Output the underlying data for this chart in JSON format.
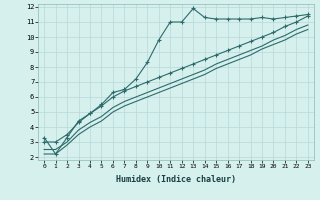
{
  "title": "",
  "xlabel": "Humidex (Indice chaleur)",
  "ylabel": "",
  "bg_color": "#d6f0ee",
  "plot_bg_color": "#d6f0ee",
  "line_color": "#2d6b6b",
  "grid_color": "#b8d8d8",
  "xlim": [
    -0.5,
    23.5
  ],
  "ylim": [
    1.8,
    12.2
  ],
  "xticks": [
    0,
    1,
    2,
    3,
    4,
    5,
    6,
    7,
    8,
    9,
    10,
    11,
    12,
    13,
    14,
    15,
    16,
    17,
    18,
    19,
    20,
    21,
    22,
    23
  ],
  "yticks": [
    2,
    3,
    4,
    5,
    6,
    7,
    8,
    9,
    10,
    11,
    12
  ],
  "series1_x": [
    0,
    1,
    2,
    3,
    4,
    5,
    6,
    7,
    8,
    9,
    10,
    11,
    12,
    13,
    14,
    15,
    16,
    17,
    18,
    19,
    20,
    21,
    22,
    23
  ],
  "series1_y": [
    3.3,
    2.2,
    3.3,
    4.4,
    4.9,
    5.5,
    6.3,
    6.5,
    7.2,
    8.3,
    9.8,
    11.0,
    11.0,
    11.9,
    11.3,
    11.2,
    11.2,
    11.2,
    11.2,
    11.3,
    11.2,
    11.3,
    11.4,
    11.5
  ],
  "series2_x": [
    0,
    1,
    2,
    3,
    4,
    5,
    6,
    7,
    8,
    9,
    10,
    11,
    12,
    13,
    14,
    15,
    16,
    17,
    18,
    19,
    20,
    21,
    22,
    23
  ],
  "series2_y": [
    3.0,
    3.0,
    3.5,
    4.3,
    4.9,
    5.4,
    6.0,
    6.4,
    6.7,
    7.0,
    7.3,
    7.6,
    7.9,
    8.2,
    8.5,
    8.8,
    9.1,
    9.4,
    9.7,
    10.0,
    10.3,
    10.7,
    11.0,
    11.4
  ],
  "series3_x": [
    0,
    1,
    2,
    3,
    4,
    5,
    6,
    7,
    8,
    9,
    10,
    11,
    12,
    13,
    14,
    15,
    16,
    17,
    18,
    19,
    20,
    21,
    22,
    23
  ],
  "series3_y": [
    2.5,
    2.5,
    3.0,
    3.8,
    4.3,
    4.7,
    5.3,
    5.7,
    6.0,
    6.3,
    6.6,
    6.9,
    7.2,
    7.5,
    7.8,
    8.2,
    8.5,
    8.8,
    9.1,
    9.4,
    9.8,
    10.1,
    10.5,
    10.8
  ],
  "series4_x": [
    0,
    1,
    2,
    3,
    4,
    5,
    6,
    7,
    8,
    9,
    10,
    11,
    12,
    13,
    14,
    15,
    16,
    17,
    18,
    19,
    20,
    21,
    22,
    23
  ],
  "series4_y": [
    2.2,
    2.2,
    2.8,
    3.5,
    4.0,
    4.4,
    5.0,
    5.4,
    5.7,
    6.0,
    6.3,
    6.6,
    6.9,
    7.2,
    7.5,
    7.9,
    8.2,
    8.5,
    8.8,
    9.2,
    9.5,
    9.8,
    10.2,
    10.5
  ]
}
